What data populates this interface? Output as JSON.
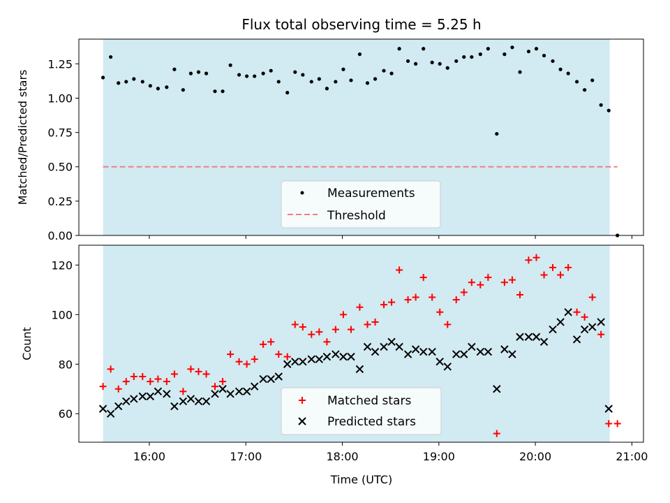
{
  "figure_title": "Flux total observing time = 5.25 h",
  "xlabel": "Time (UTC)",
  "x_tick_labels": [
    "16:00",
    "17:00",
    "18:00",
    "19:00",
    "20:00",
    "21:00"
  ],
  "colors": {
    "span": "#add8e6",
    "measurements": "#000000",
    "threshold": "#f08080",
    "matched": "#ff0000",
    "predicted": "#000000"
  },
  "chart_data": [
    {
      "type": "scatter",
      "ylabel": "Matched/Predicted stars",
      "ylim": [
        0,
        1.43
      ],
      "xlim": [
        15.27,
        21.12
      ],
      "x_units": "hours UTC",
      "y_tick_labels": [
        "0.00",
        "0.25",
        "0.50",
        "0.75",
        "1.00",
        "1.25"
      ],
      "observing_span": [
        15.52,
        20.77
      ],
      "legend_placement": "lower center",
      "threshold": {
        "name": "Threshold",
        "y": 0.5,
        "x_range": [
          15.52,
          20.85
        ],
        "style": "dashed"
      },
      "series": [
        {
          "name": "Measurements",
          "marker": "dot",
          "points": [
            [
              15.52,
              1.15
            ],
            [
              15.6,
              1.3
            ],
            [
              15.68,
              1.11
            ],
            [
              15.76,
              1.12
            ],
            [
              15.84,
              1.14
            ],
            [
              15.93,
              1.12
            ],
            [
              16.01,
              1.09
            ],
            [
              16.09,
              1.07
            ],
            [
              16.18,
              1.08
            ],
            [
              16.26,
              1.21
            ],
            [
              16.35,
              1.06
            ],
            [
              16.43,
              1.18
            ],
            [
              16.51,
              1.19
            ],
            [
              16.59,
              1.18
            ],
            [
              16.68,
              1.05
            ],
            [
              16.76,
              1.05
            ],
            [
              16.84,
              1.24
            ],
            [
              16.93,
              1.17
            ],
            [
              17.01,
              1.16
            ],
            [
              17.09,
              1.16
            ],
            [
              17.18,
              1.18
            ],
            [
              17.26,
              1.2
            ],
            [
              17.34,
              1.12
            ],
            [
              17.43,
              1.04
            ],
            [
              17.51,
              1.19
            ],
            [
              17.59,
              1.17
            ],
            [
              17.68,
              1.12
            ],
            [
              17.76,
              1.14
            ],
            [
              17.84,
              1.07
            ],
            [
              17.93,
              1.12
            ],
            [
              18.01,
              1.21
            ],
            [
              18.09,
              1.13
            ],
            [
              18.18,
              1.32
            ],
            [
              18.26,
              1.11
            ],
            [
              18.34,
              1.14
            ],
            [
              18.43,
              1.2
            ],
            [
              18.51,
              1.18
            ],
            [
              18.59,
              1.36
            ],
            [
              18.68,
              1.27
            ],
            [
              18.76,
              1.25
            ],
            [
              18.84,
              1.36
            ],
            [
              18.93,
              1.26
            ],
            [
              19.01,
              1.25
            ],
            [
              19.09,
              1.22
            ],
            [
              19.18,
              1.27
            ],
            [
              19.26,
              1.3
            ],
            [
              19.34,
              1.3
            ],
            [
              19.43,
              1.32
            ],
            [
              19.51,
              1.36
            ],
            [
              19.6,
              0.74
            ],
            [
              19.68,
              1.32
            ],
            [
              19.76,
              1.37
            ],
            [
              19.84,
              1.19
            ],
            [
              19.93,
              1.34
            ],
            [
              20.01,
              1.36
            ],
            [
              20.09,
              1.31
            ],
            [
              20.18,
              1.27
            ],
            [
              20.26,
              1.21
            ],
            [
              20.34,
              1.18
            ],
            [
              20.43,
              1.12
            ],
            [
              20.51,
              1.06
            ],
            [
              20.59,
              1.13
            ],
            [
              20.68,
              0.95
            ],
            [
              20.76,
              0.91
            ],
            [
              20.85,
              0.0
            ]
          ]
        }
      ]
    },
    {
      "type": "scatter",
      "ylabel": "Count",
      "ylim": [
        48.5,
        128
      ],
      "xlim": [
        15.27,
        21.12
      ],
      "x_units": "hours UTC",
      "y_tick_labels": [
        "60",
        "80",
        "100",
        "120"
      ],
      "observing_span": [
        15.52,
        20.77
      ],
      "legend_placement": "lower center",
      "series": [
        {
          "name": "Matched stars",
          "marker": "plus",
          "points": [
            [
              15.52,
              71
            ],
            [
              15.6,
              78
            ],
            [
              15.68,
              70
            ],
            [
              15.76,
              73
            ],
            [
              15.84,
              75
            ],
            [
              15.93,
              75
            ],
            [
              16.01,
              73
            ],
            [
              16.09,
              74
            ],
            [
              16.18,
              73
            ],
            [
              16.26,
              76
            ],
            [
              16.35,
              69
            ],
            [
              16.43,
              78
            ],
            [
              16.51,
              77
            ],
            [
              16.59,
              76
            ],
            [
              16.68,
              71
            ],
            [
              16.76,
              73
            ],
            [
              16.84,
              84
            ],
            [
              16.93,
              81
            ],
            [
              17.01,
              80
            ],
            [
              17.09,
              82
            ],
            [
              17.18,
              88
            ],
            [
              17.26,
              89
            ],
            [
              17.34,
              84
            ],
            [
              17.43,
              83
            ],
            [
              17.51,
              96
            ],
            [
              17.59,
              95
            ],
            [
              17.68,
              92
            ],
            [
              17.76,
              93
            ],
            [
              17.84,
              89
            ],
            [
              17.93,
              94
            ],
            [
              18.01,
              100
            ],
            [
              18.09,
              94
            ],
            [
              18.18,
              103
            ],
            [
              18.26,
              96
            ],
            [
              18.34,
              97
            ],
            [
              18.43,
              104
            ],
            [
              18.51,
              105
            ],
            [
              18.59,
              118
            ],
            [
              18.68,
              106
            ],
            [
              18.76,
              107
            ],
            [
              18.84,
              115
            ],
            [
              18.93,
              107
            ],
            [
              19.01,
              101
            ],
            [
              19.09,
              96
            ],
            [
              19.18,
              106
            ],
            [
              19.26,
              109
            ],
            [
              19.34,
              113
            ],
            [
              19.43,
              112
            ],
            [
              19.51,
              115
            ],
            [
              19.6,
              52
            ],
            [
              19.68,
              113
            ],
            [
              19.76,
              114
            ],
            [
              19.84,
              108
            ],
            [
              19.93,
              122
            ],
            [
              20.01,
              123
            ],
            [
              20.09,
              116
            ],
            [
              20.18,
              119
            ],
            [
              20.26,
              116
            ],
            [
              20.34,
              119
            ],
            [
              20.43,
              101
            ],
            [
              20.51,
              99
            ],
            [
              20.59,
              107
            ],
            [
              20.68,
              92
            ],
            [
              20.76,
              56
            ],
            [
              20.85,
              56
            ]
          ]
        },
        {
          "name": "Predicted stars",
          "marker": "x",
          "points": [
            [
              15.52,
              62
            ],
            [
              15.6,
              60
            ],
            [
              15.68,
              63
            ],
            [
              15.76,
              65
            ],
            [
              15.84,
              66
            ],
            [
              15.93,
              67
            ],
            [
              16.01,
              67
            ],
            [
              16.09,
              69
            ],
            [
              16.18,
              68
            ],
            [
              16.26,
              63
            ],
            [
              16.35,
              65
            ],
            [
              16.43,
              66
            ],
            [
              16.51,
              65
            ],
            [
              16.59,
              65
            ],
            [
              16.68,
              68
            ],
            [
              16.76,
              70
            ],
            [
              16.84,
              68
            ],
            [
              16.93,
              69
            ],
            [
              17.01,
              69
            ],
            [
              17.09,
              71
            ],
            [
              17.18,
              74
            ],
            [
              17.26,
              74
            ],
            [
              17.34,
              75
            ],
            [
              17.43,
              80
            ],
            [
              17.51,
              81
            ],
            [
              17.59,
              81
            ],
            [
              17.68,
              82
            ],
            [
              17.76,
              82
            ],
            [
              17.84,
              83
            ],
            [
              17.93,
              84
            ],
            [
              18.01,
              83
            ],
            [
              18.09,
              83
            ],
            [
              18.18,
              78
            ],
            [
              18.26,
              87
            ],
            [
              18.34,
              85
            ],
            [
              18.43,
              87
            ],
            [
              18.51,
              89
            ],
            [
              18.59,
              87
            ],
            [
              18.68,
              84
            ],
            [
              18.76,
              86
            ],
            [
              18.84,
              85
            ],
            [
              18.93,
              85
            ],
            [
              19.01,
              81
            ],
            [
              19.09,
              79
            ],
            [
              19.18,
              84
            ],
            [
              19.26,
              84
            ],
            [
              19.34,
              87
            ],
            [
              19.43,
              85
            ],
            [
              19.51,
              85
            ],
            [
              19.6,
              70
            ],
            [
              19.68,
              86
            ],
            [
              19.76,
              84
            ],
            [
              19.84,
              91
            ],
            [
              19.93,
              91
            ],
            [
              20.01,
              91
            ],
            [
              20.09,
              89
            ],
            [
              20.18,
              94
            ],
            [
              20.26,
              97
            ],
            [
              20.34,
              101
            ],
            [
              20.43,
              90
            ],
            [
              20.51,
              94
            ],
            [
              20.59,
              95
            ],
            [
              20.68,
              97
            ],
            [
              20.76,
              62
            ]
          ]
        }
      ]
    }
  ]
}
